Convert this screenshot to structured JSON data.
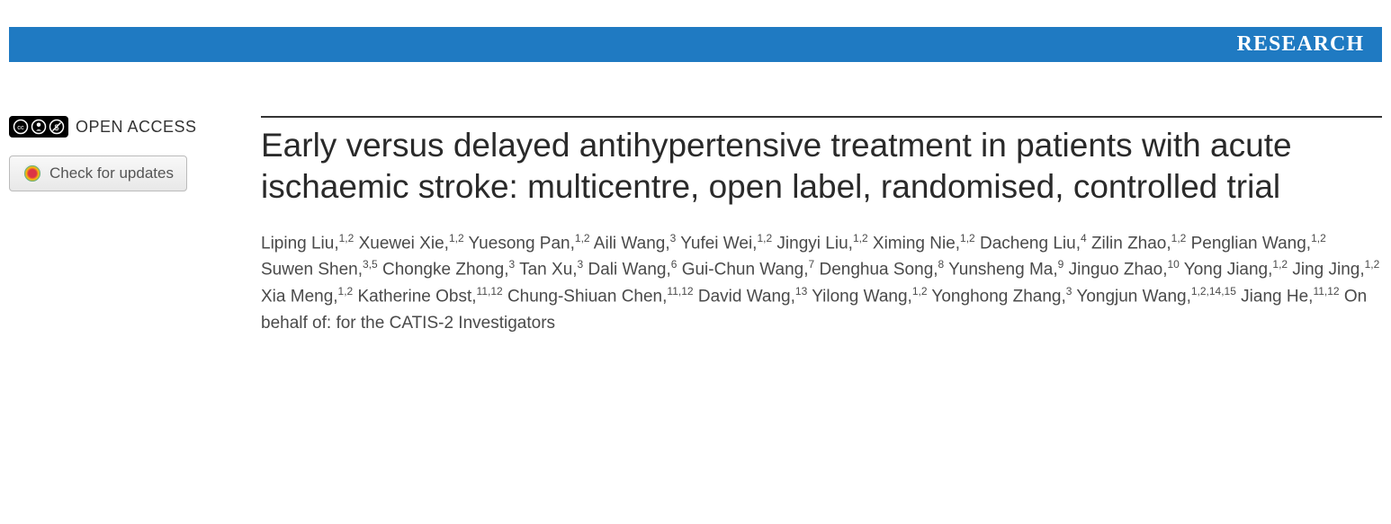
{
  "banner": {
    "label": "RESEARCH",
    "background_color": "#1f7ac2",
    "text_color": "#ffffff"
  },
  "sidebar": {
    "open_access_label": "OPEN ACCESS",
    "check_updates_label": "Check for updates"
  },
  "article": {
    "title": "Early versus delayed antihypertensive treatment in patients with acute ischaemic stroke: multicentre, open label, randomised, controlled trial",
    "authors": [
      {
        "name": "Liping Liu",
        "affil": "1,2"
      },
      {
        "name": "Xuewei Xie",
        "affil": "1,2"
      },
      {
        "name": "Yuesong Pan",
        "affil": "1,2"
      },
      {
        "name": "Aili Wang",
        "affil": "3"
      },
      {
        "name": "Yufei Wei",
        "affil": "1,2"
      },
      {
        "name": "Jingyi Liu",
        "affil": "1,2"
      },
      {
        "name": "Ximing Nie",
        "affil": "1,2"
      },
      {
        "name": "Dacheng Liu",
        "affil": "4"
      },
      {
        "name": "Zilin Zhao",
        "affil": "1,2"
      },
      {
        "name": "Penglian Wang",
        "affil": "1,2"
      },
      {
        "name": "Suwen Shen",
        "affil": "3,5"
      },
      {
        "name": "Chongke Zhong",
        "affil": "3"
      },
      {
        "name": "Tan Xu",
        "affil": "3"
      },
      {
        "name": "Dali Wang",
        "affil": "6"
      },
      {
        "name": "Gui-Chun Wang",
        "affil": "7"
      },
      {
        "name": "Denghua Song",
        "affil": "8"
      },
      {
        "name": "Yunsheng Ma",
        "affil": "9"
      },
      {
        "name": "Jinguo Zhao",
        "affil": "10"
      },
      {
        "name": "Yong Jiang",
        "affil": "1,2"
      },
      {
        "name": "Jing Jing",
        "affil": "1,2"
      },
      {
        "name": "Xia Meng",
        "affil": "1,2"
      },
      {
        "name": "Katherine Obst",
        "affil": "11,12"
      },
      {
        "name": "Chung-Shiuan Chen",
        "affil": "11,12"
      },
      {
        "name": "David Wang",
        "affil": "13"
      },
      {
        "name": "Yilong Wang",
        "affil": "1,2"
      },
      {
        "name": "Yonghong Zhang",
        "affil": "3"
      },
      {
        "name": "Yongjun Wang",
        "affil": "1,2,14,15"
      },
      {
        "name": "Jiang He",
        "affil": "11,12"
      }
    ],
    "on_behalf": "On behalf of: for the CATIS-2 Investigators"
  },
  "styling": {
    "title_fontsize": 37,
    "title_color": "#2a2a2a",
    "authors_fontsize": 19,
    "authors_color": "#4a4a4a",
    "body_background": "#ffffff",
    "divider_color": "#333333"
  }
}
